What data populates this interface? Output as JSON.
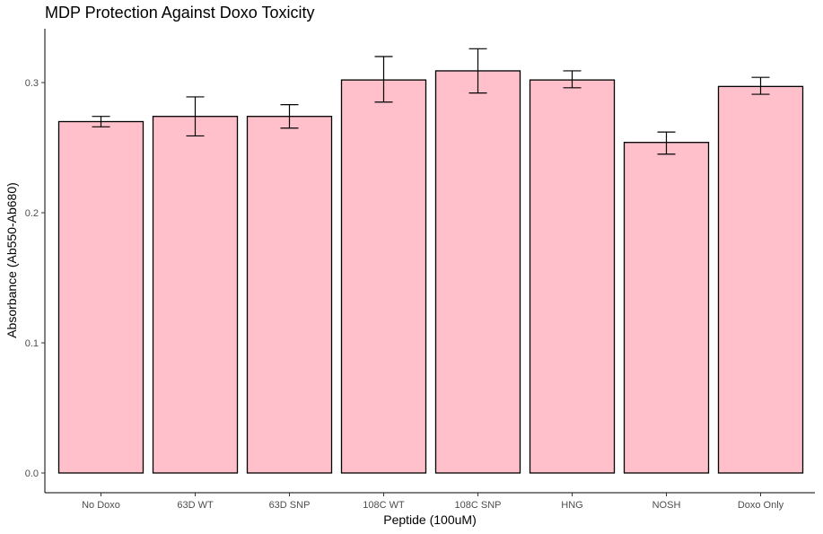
{
  "chart_data": {
    "type": "bar",
    "title": "MDP Protection Against Doxo Toxicity",
    "xlabel": "Peptide (100uM)",
    "ylabel": "Absorbance (Ab550-Ab680)",
    "categories": [
      "No Doxo",
      "63D WT",
      "63D SNP",
      "108C WT",
      "108C SNP",
      "HNG",
      "NOSH",
      "Doxo Only"
    ],
    "values": [
      0.27,
      0.274,
      0.274,
      0.302,
      0.309,
      0.302,
      0.254,
      0.297
    ],
    "error_low": [
      0.266,
      0.259,
      0.265,
      0.285,
      0.292,
      0.296,
      0.245,
      0.291
    ],
    "error_high": [
      0.274,
      0.289,
      0.283,
      0.32,
      0.326,
      0.309,
      0.262,
      0.304
    ],
    "yticks": [
      "0.0",
      "0.1",
      "0.2",
      "0.3"
    ],
    "ylim": [
      0,
      0.3425
    ],
    "bar_fill": "#ffc0cb",
    "bar_stroke": "#000000",
    "grid": false,
    "legend": "none"
  }
}
